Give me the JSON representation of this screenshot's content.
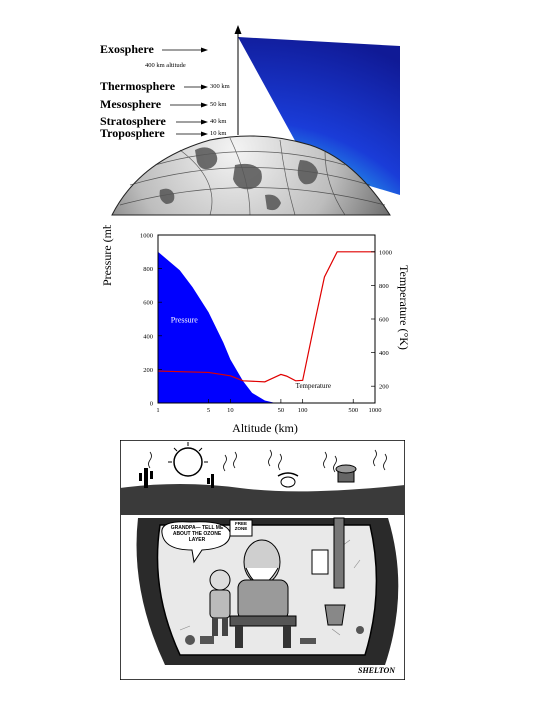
{
  "atmosphere": {
    "layers": [
      {
        "name": "Exosphere",
        "altitude": "400 km altitude"
      },
      {
        "name": "Thermosphere",
        "altitude": "300 km"
      },
      {
        "name": "Mesosphere",
        "altitude": "50 km"
      },
      {
        "name": "Stratosphere",
        "altitude": "40 km"
      },
      {
        "name": "Troposphere",
        "altitude": "10 km"
      }
    ]
  },
  "chart_data": {
    "type": "line",
    "xlabel": "Altitude (km)",
    "ylabel_left": "Pressure (mb)",
    "ylabel_right": "Temperature (°K)",
    "x_scale": "log",
    "x_ticks": [
      "1",
      "5",
      "10",
      "50",
      "100",
      "500",
      "1000"
    ],
    "y_left_ticks": [
      "0",
      "200",
      "400",
      "600",
      "800",
      "1000"
    ],
    "y_right_ticks": [
      "200",
      "400",
      "600",
      "800",
      "1000"
    ],
    "ylim_left": [
      0,
      1000
    ],
    "ylim_right": [
      100,
      1100
    ],
    "series": [
      {
        "name": "Pressure",
        "axis": "left",
        "color": "#0000ff",
        "fill": true,
        "x": [
          1,
          2,
          3,
          5,
          8,
          10,
          15,
          20,
          30,
          40
        ],
        "y": [
          900,
          790,
          690,
          540,
          360,
          260,
          130,
          60,
          15,
          2
        ]
      },
      {
        "name": "Temperature",
        "axis": "right",
        "color": "#e00000",
        "x": [
          1,
          5,
          10,
          15,
          30,
          50,
          60,
          80,
          100,
          150,
          200,
          300,
          500,
          1000
        ],
        "y": [
          290,
          282,
          262,
          232,
          226,
          270,
          260,
          232,
          235,
          600,
          850,
          1000,
          1000,
          1000
        ]
      }
    ]
  },
  "cartoon": {
    "speech_bubble": "GRANDPA— TELL ME ABOUT THE OZONE LAYER",
    "sign": "FREE ZONE",
    "signature": "SHELTON"
  }
}
